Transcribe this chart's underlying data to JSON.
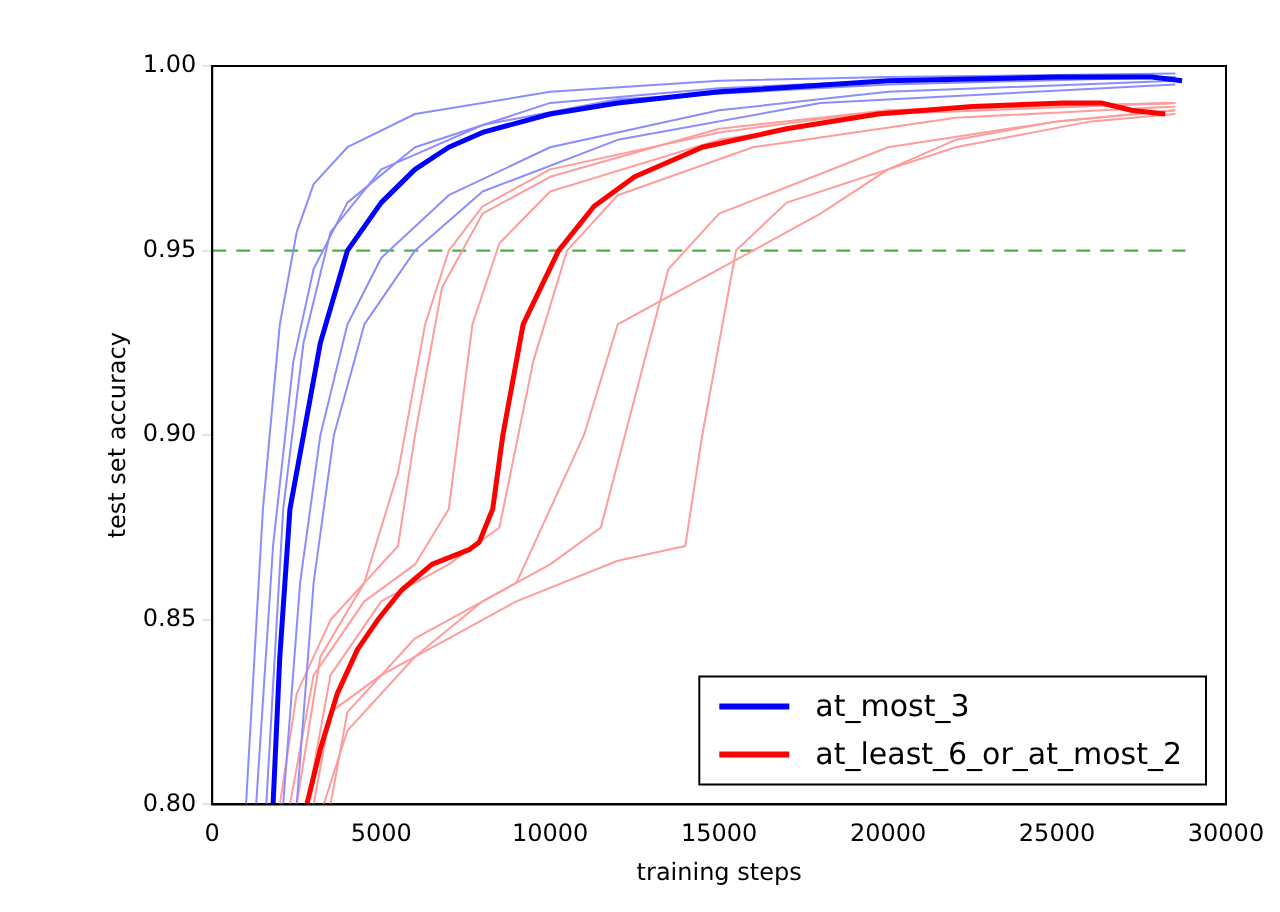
{
  "chart_data": {
    "type": "line",
    "xlabel": "training steps",
    "ylabel": "test set accuracy",
    "xlim": [
      0,
      30000
    ],
    "xticks": [
      0,
      5000,
      10000,
      15000,
      20000,
      25000,
      30000
    ],
    "ylim": [
      0.8,
      1.0
    ],
    "yticks": [
      {
        "value": 0.8,
        "label": "0.80"
      },
      {
        "value": 0.85,
        "label": "0.85"
      },
      {
        "value": 0.9,
        "label": "0.90"
      },
      {
        "value": 0.95,
        "label": "0.95"
      },
      {
        "value": 1.0,
        "label": "1.00"
      }
    ],
    "grid": false,
    "legend": "bottom right",
    "line_style": "solid",
    "marker": "none",
    "ref_lines": [
      {
        "axis": "y",
        "value": 0.95,
        "color": "#4daf4a",
        "line_style": "dashed"
      }
    ],
    "series": [
      {
        "name": "at_most_3",
        "color": "#0000ff",
        "x": [
          1800,
          2000,
          2300,
          2700,
          3200,
          4000,
          5000,
          6000,
          7000,
          8000,
          10000,
          12000,
          15000,
          20000,
          25000,
          27800,
          28700
        ],
        "values": [
          0.8,
          0.84,
          0.88,
          0.9,
          0.925,
          0.95,
          0.963,
          0.972,
          0.978,
          0.982,
          0.987,
          0.99,
          0.993,
          0.996,
          0.997,
          0.997,
          0.996
        ]
      },
      {
        "name": "at_least_6_or_at_most_2",
        "color": "#ff0000",
        "x": [
          2800,
          3200,
          3700,
          4300,
          4900,
          5600,
          6500,
          7600,
          7900,
          8300,
          8600,
          9200,
          10250,
          11300,
          12500,
          14500,
          17000,
          19700,
          22500,
          25200,
          26300,
          27200,
          28200
        ],
        "values": [
          0.8,
          0.815,
          0.83,
          0.842,
          0.85,
          0.858,
          0.865,
          0.869,
          0.871,
          0.88,
          0.9,
          0.93,
          0.95,
          0.962,
          0.97,
          0.978,
          0.983,
          0.987,
          0.989,
          0.99,
          0.99,
          0.988,
          0.987
        ]
      },
      {
        "color": "#8c8cff",
        "x": [
          1000,
          1500,
          2000,
          2500,
          3000,
          4000,
          6000,
          10000,
          15000,
          20000,
          28500
        ],
        "values": [
          0.8,
          0.88,
          0.93,
          0.955,
          0.968,
          0.978,
          0.987,
          0.993,
          0.996,
          0.997,
          0.998
        ]
      },
      {
        "color": "#8c8cff",
        "x": [
          1300,
          1800,
          2400,
          3000,
          4000,
          6000,
          10000,
          15000,
          20000,
          28500
        ],
        "values": [
          0.8,
          0.87,
          0.92,
          0.945,
          0.963,
          0.978,
          0.99,
          0.994,
          0.996,
          0.997
        ]
      },
      {
        "color": "#8c8cff",
        "x": [
          2100,
          2600,
          3200,
          4000,
          5000,
          7000,
          10000,
          15000,
          20000,
          28500
        ],
        "values": [
          0.8,
          0.86,
          0.9,
          0.93,
          0.948,
          0.965,
          0.978,
          0.988,
          0.993,
          0.996
        ]
      },
      {
        "color": "#8c8cff",
        "x": [
          2500,
          3000,
          3600,
          4500,
          6000,
          8000,
          12000,
          18000,
          28500
        ],
        "values": [
          0.8,
          0.86,
          0.9,
          0.93,
          0.95,
          0.966,
          0.98,
          0.99,
          0.995
        ]
      },
      {
        "color": "#8c8cff",
        "x": [
          1600,
          2100,
          2700,
          3500,
          5000,
          8000,
          12000,
          20000,
          28500
        ],
        "values": [
          0.8,
          0.88,
          0.925,
          0.955,
          0.972,
          0.984,
          0.991,
          0.995,
          0.997
        ]
      },
      {
        "color": "#ff9c9c",
        "x": [
          2000,
          2500,
          3500,
          4500,
          5500,
          6300,
          7000,
          8000,
          10000,
          15000,
          20000,
          28500
        ],
        "values": [
          0.8,
          0.83,
          0.85,
          0.86,
          0.89,
          0.93,
          0.95,
          0.962,
          0.972,
          0.982,
          0.988,
          0.99
        ]
      },
      {
        "color": "#ff9c9c",
        "x": [
          2300,
          3000,
          4500,
          6000,
          7000,
          7700,
          8500,
          10000,
          15000,
          20000,
          28500
        ],
        "values": [
          0.8,
          0.835,
          0.855,
          0.865,
          0.88,
          0.93,
          0.952,
          0.966,
          0.98,
          0.987,
          0.99
        ]
      },
      {
        "color": "#ff9c9c",
        "x": [
          2800,
          3500,
          5000,
          7000,
          8500,
          9500,
          10500,
          12000,
          16000,
          22000,
          28500
        ],
        "values": [
          0.8,
          0.835,
          0.855,
          0.865,
          0.875,
          0.92,
          0.95,
          0.965,
          0.978,
          0.986,
          0.989
        ]
      },
      {
        "color": "#ff9c9c",
        "x": [
          3300,
          4000,
          6000,
          8000,
          10000,
          11500,
          12500,
          13500,
          15000,
          20000,
          25000,
          28500
        ],
        "values": [
          0.8,
          0.82,
          0.84,
          0.855,
          0.865,
          0.875,
          0.91,
          0.945,
          0.96,
          0.978,
          0.985,
          0.988
        ]
      },
      {
        "color": "#ff9c9c",
        "x": [
          3000,
          3500,
          5000,
          7000,
          9000,
          12000,
          14000,
          14500,
          15500,
          17000,
          22000,
          26000,
          28500
        ],
        "values": [
          0.8,
          0.825,
          0.835,
          0.845,
          0.855,
          0.866,
          0.87,
          0.9,
          0.95,
          0.963,
          0.978,
          0.985,
          0.987
        ]
      },
      {
        "color": "#ff9c9c",
        "x": [
          3500,
          4000,
          6000,
          9000,
          11000,
          12000,
          13000,
          15000,
          18000,
          20000,
          22000,
          25000,
          28500
        ],
        "values": [
          0.8,
          0.825,
          0.845,
          0.86,
          0.9,
          0.93,
          0.935,
          0.945,
          0.96,
          0.972,
          0.98,
          0.985,
          0.988
        ]
      },
      {
        "color": "#ff9c9c",
        "x": [
          2500,
          3200,
          4500,
          5500,
          6000,
          6800,
          8000,
          10000,
          15000,
          20000,
          28500
        ],
        "values": [
          0.8,
          0.84,
          0.86,
          0.87,
          0.9,
          0.94,
          0.96,
          0.97,
          0.983,
          0.988,
          0.99
        ]
      }
    ]
  }
}
